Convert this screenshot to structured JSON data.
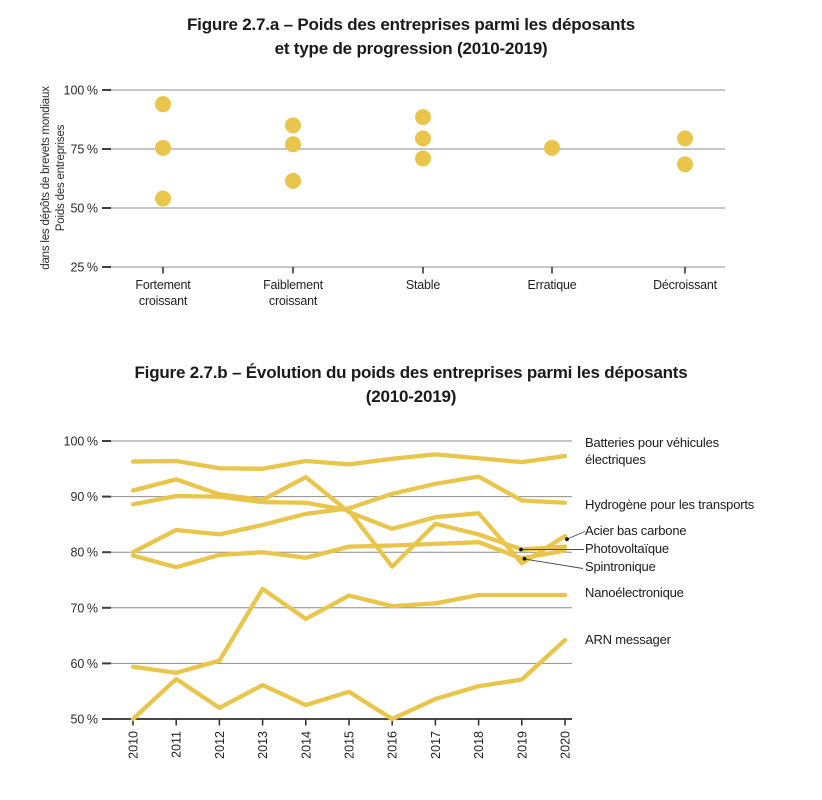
{
  "colors": {
    "series_yellow": "#e9c64b",
    "gridline_gray": "#8e8e8e",
    "axis_dark": "#2e2e2e",
    "tick_dash_dark": "#3f3f3f",
    "leader_gray": "#4a4a4a",
    "leader_dot_black": "#111111",
    "text": "#1c1c1c"
  },
  "chart_data": [
    {
      "type": "scatter",
      "title": "Figure 2.7.a – Poids des entreprises parmi les déposants et type de progression (2010-2019)",
      "title_lines": [
        "Figure 2.7.a – Poids des entreprises parmi les déposants",
        "et type de progression (2010-2019)"
      ],
      "ylabel": "Poids des entreprises dans les dépôts de brevets mondiaux",
      "ylabel_lines": [
        "Poids des entreprises",
        "dans les dépôts de brevets mondiaux"
      ],
      "xlabel": "",
      "unit": "%",
      "categories": [
        "Fortement croissant",
        "Faiblement croissant",
        "Stable",
        "Erratique",
        "Décroissant"
      ],
      "categories_display": [
        "Fortement croissant",
        "Faiblement croissant",
        "Stable",
        "Erratique",
        "Décroissant"
      ],
      "values": [
        [
          94,
          75.5,
          54
        ],
        [
          85,
          77,
          61.5
        ],
        [
          88.5,
          79.5,
          71
        ],
        [
          75.5
        ],
        [
          79.5,
          68.5
        ]
      ],
      "y_ticks": [
        100,
        75,
        50,
        25
      ],
      "ylim": [
        20,
        103
      ],
      "grid": true,
      "legend_position": "none"
    },
    {
      "type": "line",
      "title": "Figure 2.7.b – Évolution du poids des entreprises parmi les déposants (2010-2019)",
      "title_lines": [
        "Figure 2.7.b – Évolution du poids des entreprises parmi les déposants",
        "(2010-2019)"
      ],
      "xlabel": "",
      "ylabel": "",
      "unit": "%",
      "x": [
        2010,
        2011,
        2012,
        2013,
        2014,
        2015,
        2016,
        2017,
        2018,
        2019,
        2020
      ],
      "y_ticks": [
        100,
        90,
        80,
        70,
        60,
        50
      ],
      "ylim": [
        50,
        100
      ],
      "grid": true,
      "legend_position": "right",
      "series": [
        {
          "name": "Batteries pour véhicules électriques",
          "values": [
            96.3,
            96.4,
            95.1,
            95.0,
            96.4,
            95.8,
            96.8,
            97.6,
            96.9,
            96.2,
            97.3
          ]
        },
        {
          "name": "Hydrogène pour les transports",
          "values": [
            80.0,
            84.0,
            83.2,
            84.9,
            86.9,
            87.9,
            90.5,
            92.3,
            93.6,
            89.3,
            88.9
          ]
        },
        {
          "name": "Acier bas carbone",
          "values": [
            91.1,
            93.1,
            90.4,
            89.4,
            93.5,
            87.2,
            84.2,
            86.3,
            87.0,
            78.0,
            82.9
          ]
        },
        {
          "name": "Photovoltaïque",
          "values": [
            88.6,
            90.1,
            90.0,
            89.0,
            88.9,
            87.5,
            77.4,
            85.1,
            83.2,
            80.5,
            81.0
          ]
        },
        {
          "name": "Spintronique",
          "values": [
            79.4,
            77.3,
            79.5,
            80.0,
            79.0,
            81.0,
            81.2,
            81.5,
            81.8,
            78.9,
            80.3
          ]
        },
        {
          "name": "Nanoélectronique",
          "values": [
            59.4,
            58.3,
            60.5,
            73.4,
            68.0,
            72.2,
            70.3,
            70.8,
            72.3,
            72.3,
            72.3
          ]
        },
        {
          "name": "ARN messager",
          "values": [
            50.0,
            57.2,
            52.0,
            56.1,
            52.5,
            54.9,
            50.0,
            53.6,
            55.9,
            57.1,
            64.2
          ]
        }
      ]
    }
  ]
}
